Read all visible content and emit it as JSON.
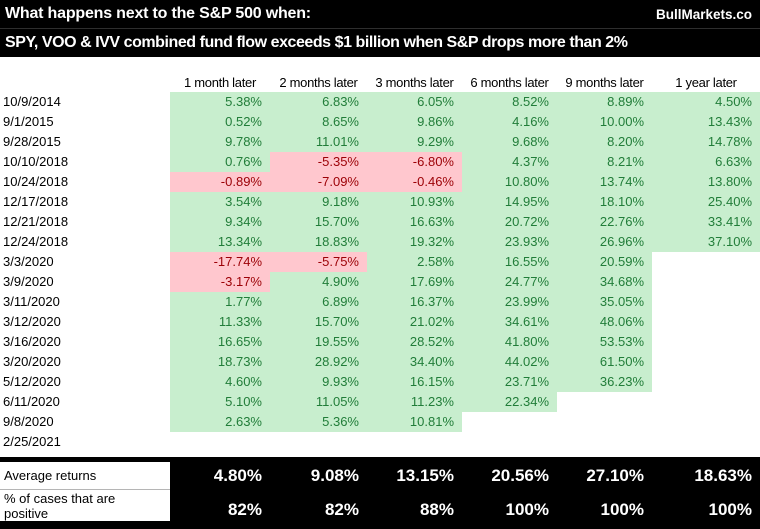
{
  "header": {
    "title_line1": "What happens next to the S&P 500 when:",
    "brand": "BullMarkets.co",
    "title_line2": "SPY, VOO & IVV combined fund flow exceeds $1 billion when S&P drops more than 2%"
  },
  "colors": {
    "header_bg": "#000000",
    "header_text": "#FFFFFF",
    "positive_bg": "#C8EECE",
    "positive_text": "#217D39",
    "negative_bg": "#FFC7CE",
    "negative_text": "#9C0006"
  },
  "chart_data": {
    "type": "table",
    "title": "What happens next to the S&P 500 when: SPY, VOO & IVV combined fund flow exceeds $1 billion when S&P drops more than 2%",
    "columns": [
      "1 month later",
      "2 months later",
      "3 months later",
      "6 months later",
      "9 months later",
      "1 year later"
    ],
    "rows": [
      {
        "date": "10/9/2014",
        "cells": [
          {
            "v": "5.38%",
            "s": "positive"
          },
          {
            "v": "6.83%",
            "s": "positive"
          },
          {
            "v": "6.05%",
            "s": "positive"
          },
          {
            "v": "8.52%",
            "s": "positive"
          },
          {
            "v": "8.89%",
            "s": "positive"
          },
          {
            "v": "4.50%",
            "s": "positive"
          }
        ]
      },
      {
        "date": "9/1/2015",
        "cells": [
          {
            "v": "0.52%",
            "s": "positive"
          },
          {
            "v": "8.65%",
            "s": "positive"
          },
          {
            "v": "9.86%",
            "s": "positive"
          },
          {
            "v": "4.16%",
            "s": "positive"
          },
          {
            "v": "10.00%",
            "s": "positive"
          },
          {
            "v": "13.43%",
            "s": "positive"
          }
        ]
      },
      {
        "date": "9/28/2015",
        "cells": [
          {
            "v": "9.78%",
            "s": "positive"
          },
          {
            "v": "11.01%",
            "s": "positive"
          },
          {
            "v": "9.29%",
            "s": "positive"
          },
          {
            "v": "9.68%",
            "s": "positive"
          },
          {
            "v": "8.20%",
            "s": "positive"
          },
          {
            "v": "14.78%",
            "s": "positive"
          }
        ]
      },
      {
        "date": "10/10/2018",
        "cells": [
          {
            "v": "0.76%",
            "s": "positive"
          },
          {
            "v": "-5.35%",
            "s": "negative"
          },
          {
            "v": "-6.80%",
            "s": "negative"
          },
          {
            "v": "4.37%",
            "s": "positive"
          },
          {
            "v": "8.21%",
            "s": "positive"
          },
          {
            "v": "6.63%",
            "s": "positive"
          }
        ]
      },
      {
        "date": "10/24/2018",
        "cells": [
          {
            "v": "-0.89%",
            "s": "negative"
          },
          {
            "v": "-7.09%",
            "s": "negative"
          },
          {
            "v": "-0.46%",
            "s": "negative"
          },
          {
            "v": "10.80%",
            "s": "positive"
          },
          {
            "v": "13.74%",
            "s": "positive"
          },
          {
            "v": "13.80%",
            "s": "positive"
          }
        ]
      },
      {
        "date": "12/17/2018",
        "cells": [
          {
            "v": "3.54%",
            "s": "positive"
          },
          {
            "v": "9.18%",
            "s": "positive"
          },
          {
            "v": "10.93%",
            "s": "positive"
          },
          {
            "v": "14.95%",
            "s": "positive"
          },
          {
            "v": "18.10%",
            "s": "positive"
          },
          {
            "v": "25.40%",
            "s": "positive"
          }
        ]
      },
      {
        "date": "12/21/2018",
        "cells": [
          {
            "v": "9.34%",
            "s": "positive"
          },
          {
            "v": "15.70%",
            "s": "positive"
          },
          {
            "v": "16.63%",
            "s": "positive"
          },
          {
            "v": "20.72%",
            "s": "positive"
          },
          {
            "v": "22.76%",
            "s": "positive"
          },
          {
            "v": "33.41%",
            "s": "positive"
          }
        ]
      },
      {
        "date": "12/24/2018",
        "cells": [
          {
            "v": "13.34%",
            "s": "positive"
          },
          {
            "v": "18.83%",
            "s": "positive"
          },
          {
            "v": "19.32%",
            "s": "positive"
          },
          {
            "v": "23.93%",
            "s": "positive"
          },
          {
            "v": "26.96%",
            "s": "positive"
          },
          {
            "v": "37.10%",
            "s": "positive"
          }
        ]
      },
      {
        "date": "3/3/2020",
        "cells": [
          {
            "v": "-17.74%",
            "s": "negative"
          },
          {
            "v": "-5.75%",
            "s": "negative"
          },
          {
            "v": "2.58%",
            "s": "positive"
          },
          {
            "v": "16.55%",
            "s": "positive"
          },
          {
            "v": "20.59%",
            "s": "positive"
          },
          {
            "v": "",
            "s": "empty"
          }
        ]
      },
      {
        "date": "3/9/2020",
        "cells": [
          {
            "v": "-3.17%",
            "s": "negative"
          },
          {
            "v": "4.90%",
            "s": "positive"
          },
          {
            "v": "17.69%",
            "s": "positive"
          },
          {
            "v": "24.77%",
            "s": "positive"
          },
          {
            "v": "34.68%",
            "s": "positive"
          },
          {
            "v": "",
            "s": "empty"
          }
        ]
      },
      {
        "date": "3/11/2020",
        "cells": [
          {
            "v": "1.77%",
            "s": "positive"
          },
          {
            "v": "6.89%",
            "s": "positive"
          },
          {
            "v": "16.37%",
            "s": "positive"
          },
          {
            "v": "23.99%",
            "s": "positive"
          },
          {
            "v": "35.05%",
            "s": "positive"
          },
          {
            "v": "",
            "s": "empty"
          }
        ]
      },
      {
        "date": "3/12/2020",
        "cells": [
          {
            "v": "11.33%",
            "s": "positive"
          },
          {
            "v": "15.70%",
            "s": "positive"
          },
          {
            "v": "21.02%",
            "s": "positive"
          },
          {
            "v": "34.61%",
            "s": "positive"
          },
          {
            "v": "48.06%",
            "s": "positive"
          },
          {
            "v": "",
            "s": "empty"
          }
        ]
      },
      {
        "date": "3/16/2020",
        "cells": [
          {
            "v": "16.65%",
            "s": "positive"
          },
          {
            "v": "19.55%",
            "s": "positive"
          },
          {
            "v": "28.52%",
            "s": "positive"
          },
          {
            "v": "41.80%",
            "s": "positive"
          },
          {
            "v": "53.53%",
            "s": "positive"
          },
          {
            "v": "",
            "s": "empty"
          }
        ]
      },
      {
        "date": "3/20/2020",
        "cells": [
          {
            "v": "18.73%",
            "s": "positive"
          },
          {
            "v": "28.92%",
            "s": "positive"
          },
          {
            "v": "34.40%",
            "s": "positive"
          },
          {
            "v": "44.02%",
            "s": "positive"
          },
          {
            "v": "61.50%",
            "s": "positive"
          },
          {
            "v": "",
            "s": "empty"
          }
        ]
      },
      {
        "date": "5/12/2020",
        "cells": [
          {
            "v": "4.60%",
            "s": "positive"
          },
          {
            "v": "9.93%",
            "s": "positive"
          },
          {
            "v": "16.15%",
            "s": "positive"
          },
          {
            "v": "23.71%",
            "s": "positive"
          },
          {
            "v": "36.23%",
            "s": "positive"
          },
          {
            "v": "",
            "s": "empty"
          }
        ]
      },
      {
        "date": "6/11/2020",
        "cells": [
          {
            "v": "5.10%",
            "s": "positive"
          },
          {
            "v": "11.05%",
            "s": "positive"
          },
          {
            "v": "11.23%",
            "s": "positive"
          },
          {
            "v": "22.34%",
            "s": "positive"
          },
          {
            "v": "",
            "s": "empty"
          },
          {
            "v": "",
            "s": "empty"
          }
        ]
      },
      {
        "date": "9/8/2020",
        "cells": [
          {
            "v": "2.63%",
            "s": "positive"
          },
          {
            "v": "5.36%",
            "s": "positive"
          },
          {
            "v": "10.81%",
            "s": "positive"
          },
          {
            "v": "",
            "s": "empty"
          },
          {
            "v": "",
            "s": "empty"
          },
          {
            "v": "",
            "s": "empty"
          }
        ]
      },
      {
        "date": "2/25/2021",
        "cells": [
          {
            "v": "",
            "s": "empty"
          },
          {
            "v": "",
            "s": "empty"
          },
          {
            "v": "",
            "s": "empty"
          },
          {
            "v": "",
            "s": "empty"
          },
          {
            "v": "",
            "s": "empty"
          },
          {
            "v": "",
            "s": "empty"
          }
        ]
      }
    ],
    "summary": {
      "average_label": "Average returns",
      "average_values": [
        "4.80%",
        "9.08%",
        "13.15%",
        "20.56%",
        "27.10%",
        "18.63%"
      ],
      "positive_label": "% of cases that are positive",
      "positive_values": [
        "82%",
        "82%",
        "88%",
        "100%",
        "100%",
        "100%"
      ]
    }
  }
}
